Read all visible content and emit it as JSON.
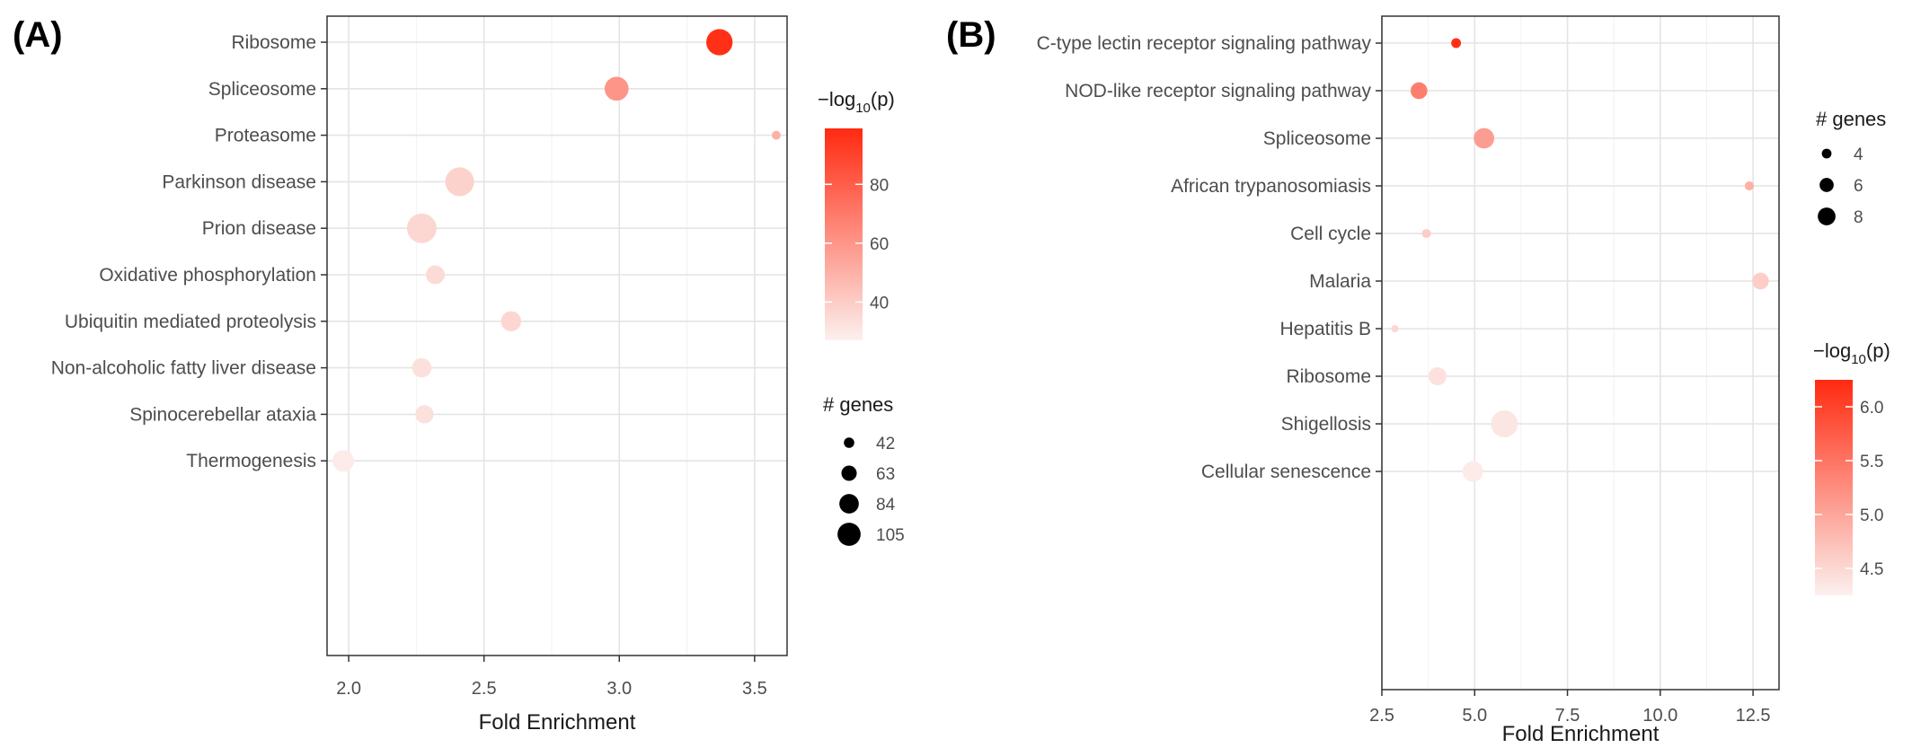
{
  "chart_data": [
    {
      "type": "scatter",
      "panel_label": "(A)",
      "xlabel": "Fold Enrichment",
      "ylabel": "",
      "xlim": [
        1.92,
        3.62
      ],
      "xticks": [
        "2.0",
        "2.5",
        "3.0",
        "3.5"
      ],
      "xtick_values": [
        2.0,
        2.5,
        3.0,
        3.5
      ],
      "grid": true,
      "categories": [
        "Ribosome",
        "Spliceosome",
        "Proteasome",
        "Parkinson disease",
        "Prion disease",
        "Oxidative phosphorylation",
        "Ubiquitin mediated proteolysis",
        "Non-alcoholic fatty liver disease",
        "Spinocerebellar ataxia",
        "Thermogenesis"
      ],
      "points": [
        {
          "category": "Ribosome",
          "x": 3.37,
          "genes": 90,
          "neglog10p": 97
        },
        {
          "category": "Spliceosome",
          "x": 2.99,
          "genes": 80,
          "neglog10p": 60
        },
        {
          "category": "Proteasome",
          "x": 3.58,
          "genes": 30,
          "neglog10p": 50
        },
        {
          "category": "Parkinson disease",
          "x": 2.41,
          "genes": 101,
          "neglog10p": 38
        },
        {
          "category": "Prion disease",
          "x": 2.27,
          "genes": 105,
          "neglog10p": 36
        },
        {
          "category": "Oxidative phosphorylation",
          "x": 2.32,
          "genes": 60,
          "neglog10p": 35
        },
        {
          "category": "Ubiquitin mediated proteolysis",
          "x": 2.6,
          "genes": 65,
          "neglog10p": 36
        },
        {
          "category": "Non-alcoholic fatty liver disease",
          "x": 2.27,
          "genes": 62,
          "neglog10p": 33
        },
        {
          "category": "Spinocerebellar ataxia",
          "x": 2.28,
          "genes": 58,
          "neglog10p": 33
        },
        {
          "category": "Thermogenesis",
          "x": 1.98,
          "genes": 70,
          "neglog10p": 29
        }
      ],
      "size_legend": {
        "title": "# genes",
        "values": [
          42,
          63,
          84,
          105
        ],
        "labels": [
          "42",
          "63",
          "84",
          "105"
        ]
      },
      "color_legend": {
        "title_base": "−log",
        "title_sub": "10",
        "title_tail": "(p)",
        "min": 27,
        "max": 99,
        "ticks": [
          40,
          60,
          80
        ],
        "tick_labels": [
          "40",
          "60",
          "80"
        ],
        "low_color": "#fcf0ee",
        "high_color": "#ff2a10"
      },
      "legend_placement": "right"
    },
    {
      "type": "scatter",
      "panel_label": "(B)",
      "xlabel": "Fold Enrichment",
      "ylabel": "",
      "xlim": [
        2.5,
        13.2
      ],
      "xticks": [
        "2.5",
        "5.0",
        "7.5",
        "10.0",
        "12.5"
      ],
      "xtick_values": [
        2.5,
        5.0,
        7.5,
        10.0,
        12.5
      ],
      "grid": true,
      "categories": [
        "C-type lectin receptor signaling pathway",
        "NOD-like receptor signaling pathway",
        "Spliceosome",
        "African trypanosomiasis",
        "Cell cycle",
        "Malaria",
        "Hepatitis B",
        "Ribosome",
        "Shigellosis",
        "Cellular senescence"
      ],
      "points": [
        {
          "category": "C-type lectin receptor signaling pathway",
          "x": 4.5,
          "genes": 3.2,
          "neglog10p": 6.2
        },
        {
          "category": "NOD-like receptor signaling pathway",
          "x": 3.5,
          "genes": 5.5,
          "neglog10p": 5.4
        },
        {
          "category": "Spliceosome",
          "x": 5.25,
          "genes": 7,
          "neglog10p": 5.1
        },
        {
          "category": "African trypanosomiasis",
          "x": 12.4,
          "genes": 3,
          "neglog10p": 4.9
        },
        {
          "category": "Cell cycle",
          "x": 3.7,
          "genes": 3,
          "neglog10p": 4.6
        },
        {
          "category": "Malaria",
          "x": 12.7,
          "genes": 5.5,
          "neglog10p": 4.6
        },
        {
          "category": "Hepatitis B",
          "x": 2.85,
          "genes": 2.5,
          "neglog10p": 4.5
        },
        {
          "category": "Ribosome",
          "x": 4.0,
          "genes": 6,
          "neglog10p": 4.4
        },
        {
          "category": "Shigellosis",
          "x": 5.8,
          "genes": 10,
          "neglog10p": 4.35
        },
        {
          "category": "Cellular senescence",
          "x": 4.95,
          "genes": 7,
          "neglog10p": 4.3
        }
      ],
      "size_legend": {
        "title": "# genes",
        "values": [
          4,
          6,
          8
        ],
        "labels": [
          "4",
          "6",
          "8"
        ]
      },
      "color_legend": {
        "title_base": "−log",
        "title_sub": "10",
        "title_tail": "(p)",
        "min": 4.25,
        "max": 6.25,
        "ticks": [
          4.5,
          5.0,
          5.5,
          6.0
        ],
        "tick_labels": [
          "4.5",
          "5.0",
          "5.5",
          "6.0"
        ],
        "low_color": "#fcf0ee",
        "high_color": "#ff2a10"
      },
      "legend_placement": "right"
    }
  ]
}
